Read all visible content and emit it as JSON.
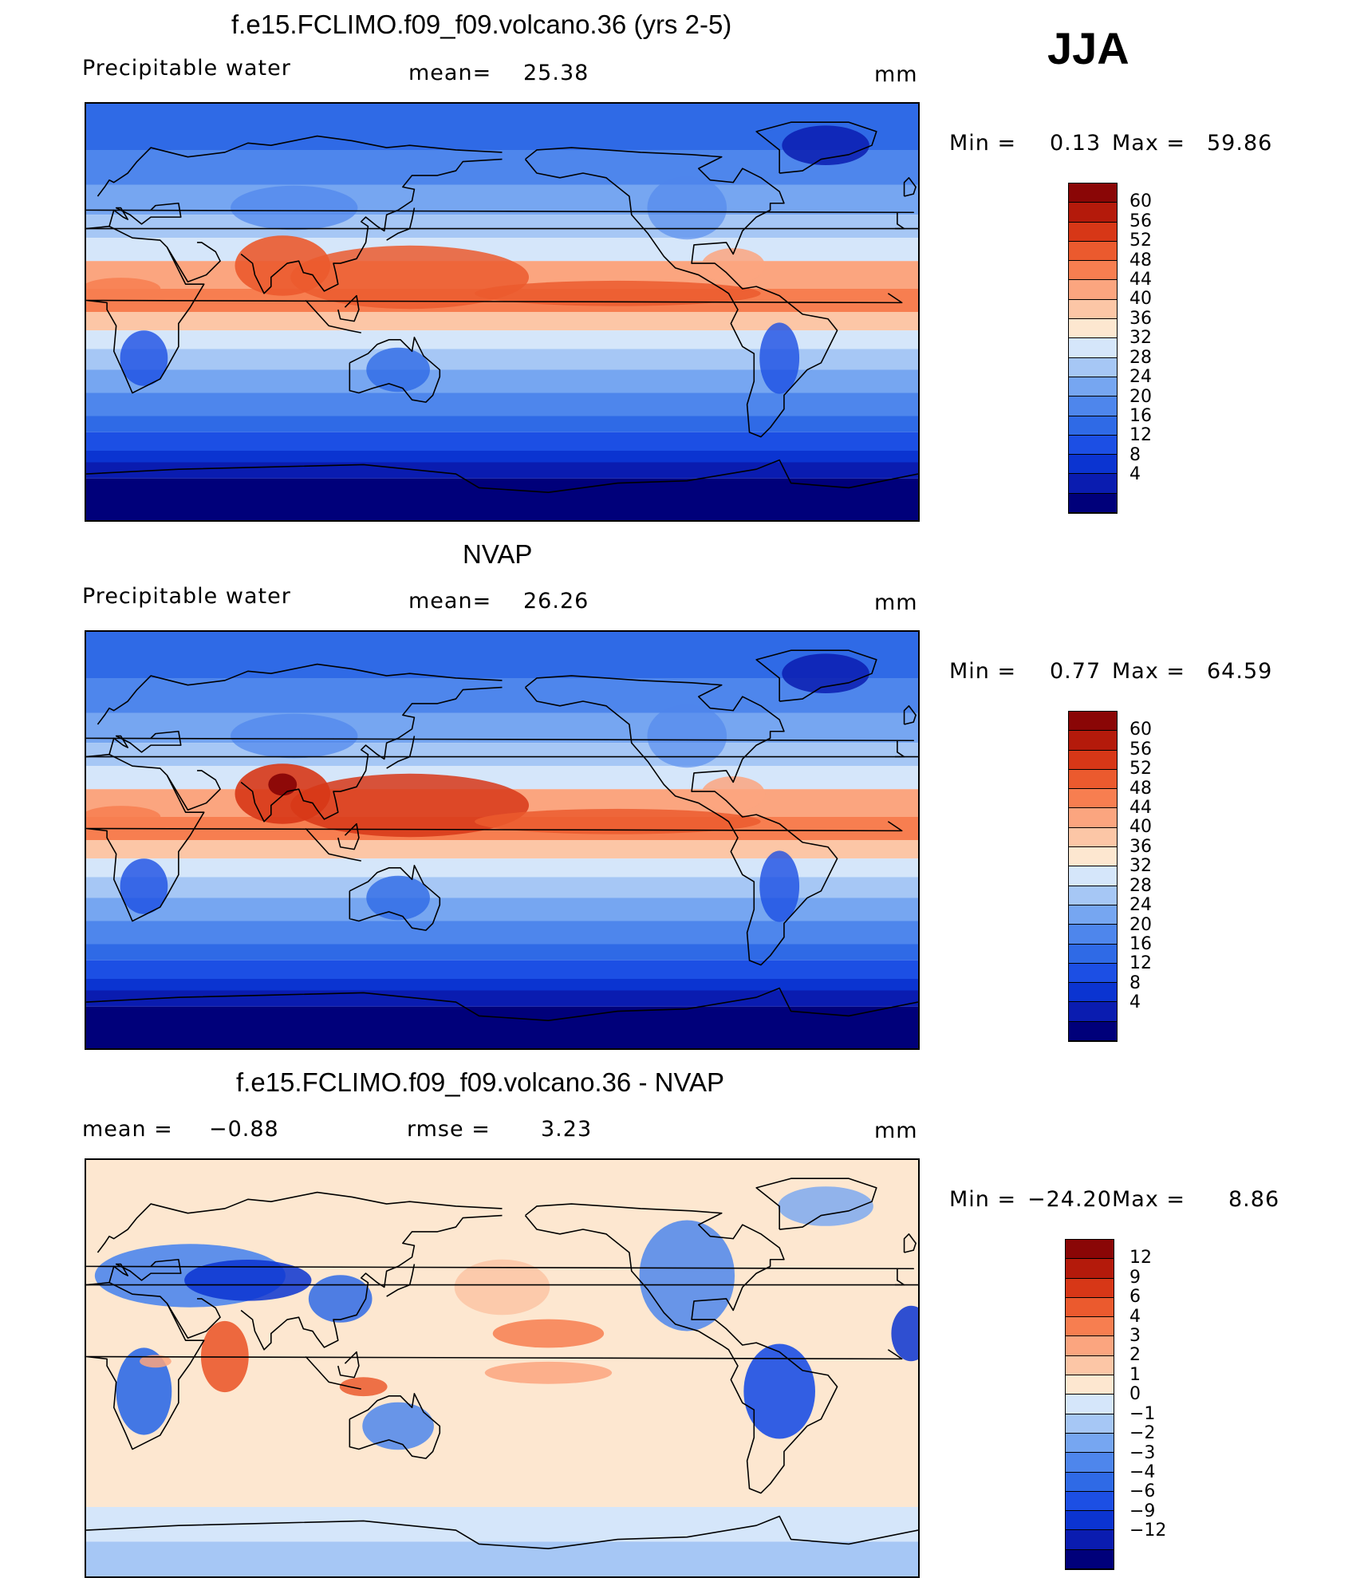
{
  "season": "JJA",
  "colors": {
    "pw_scale": [
      "#00007a",
      "#0a1cb0",
      "#0b34d1",
      "#1c4fe4",
      "#2f6ae6",
      "#4e86ec",
      "#76a6f1",
      "#a6c7f5",
      "#d5e6fa",
      "#fde7d0",
      "#fcc6a6",
      "#fba57f",
      "#f77e50",
      "#eb5a2e",
      "#d73717",
      "#b41a0b",
      "#8a0606"
    ],
    "diff_scale": [
      "#00007a",
      "#0a1cb0",
      "#0b34d1",
      "#1c4fe4",
      "#2f6ae6",
      "#4e86ec",
      "#76a6f1",
      "#a6c7f5",
      "#d5e6fa",
      "#fde7d0",
      "#fcc6a6",
      "#fba57f",
      "#f77e50",
      "#eb5a2e",
      "#d73717",
      "#b41a0b",
      "#8a0606"
    ]
  },
  "panels": [
    {
      "title": "f.e15.FCLIMO.f09_f09.volcano.36 (yrs 2-5)",
      "left_label": "Precipitable  water",
      "stat_label": "mean=",
      "stat_value": "25.38",
      "units": "mm",
      "min_label": "Min  =",
      "min_value": "0.13",
      "max_label": "Max  =",
      "max_value": "59.86",
      "levels": [
        "60",
        "56",
        "52",
        "48",
        "44",
        "40",
        "36",
        "32",
        "28",
        "24",
        "20",
        "16",
        "12",
        "8",
        "4"
      ],
      "map_type": "model"
    },
    {
      "title": "NVAP",
      "left_label": "Precipitable  water",
      "stat_label": "mean=",
      "stat_value": "26.26",
      "units": "mm",
      "min_label": "Min  =",
      "min_value": "0.77",
      "max_label": "Max  =",
      "max_value": "64.59",
      "levels": [
        "60",
        "56",
        "52",
        "48",
        "44",
        "40",
        "36",
        "32",
        "28",
        "24",
        "20",
        "16",
        "12",
        "8",
        "4"
      ],
      "map_type": "obs"
    },
    {
      "title": "f.e15.FCLIMO.f09_f09.volcano.36 - NVAP",
      "left_label": "mean  =",
      "left_value": "−0.88",
      "stat_label": "rmse  =",
      "stat_value": "3.23",
      "units": "mm",
      "min_label": "Min  =",
      "min_value": "−24.20",
      "max_label": "Max  =",
      "max_value": "8.86",
      "levels": [
        "12",
        "9",
        "6",
        "4",
        "3",
        "2",
        "1",
        "0",
        "−1",
        "−2",
        "−3",
        "−4",
        "−6",
        "−9",
        "−12"
      ],
      "map_type": "diff"
    }
  ]
}
